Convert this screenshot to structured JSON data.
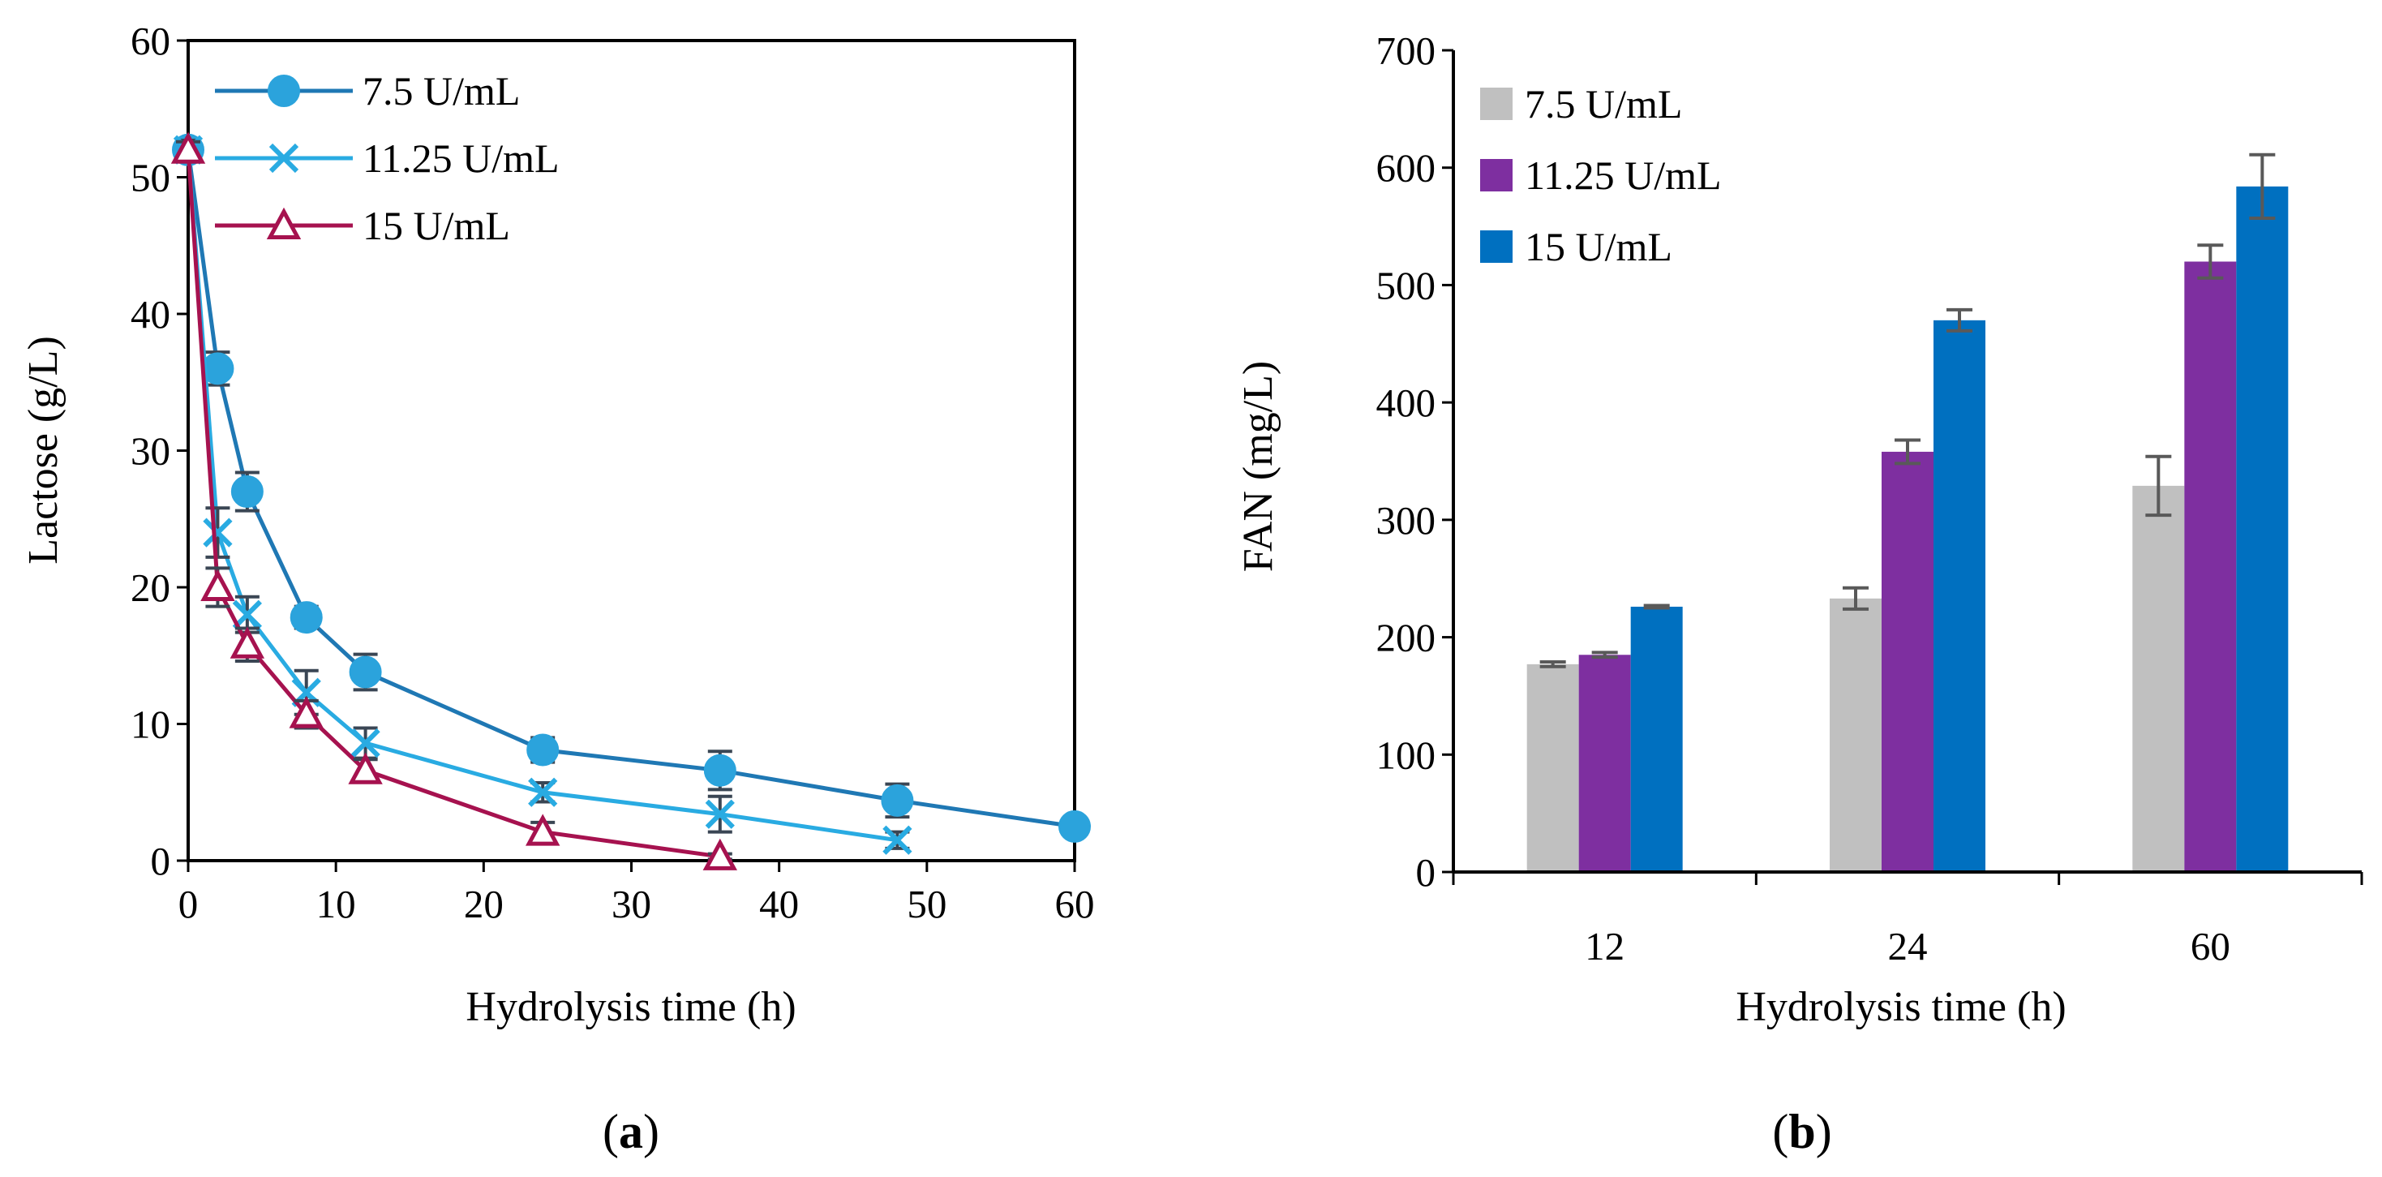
{
  "chart_data": [
    {
      "panel": "a",
      "type": "line",
      "xlabel": "Hydrolysis time (h)",
      "ylabel": "Lactose (g/L)",
      "xlim": [
        0,
        60
      ],
      "ylim": [
        0,
        60
      ],
      "xticks": [
        "0",
        "10",
        "20",
        "30",
        "40",
        "50",
        "60"
      ],
      "yticks": [
        "0",
        "10",
        "20",
        "30",
        "40",
        "50",
        "60"
      ],
      "grid": false,
      "legend_position": "top-left",
      "series": [
        {
          "name": "7.5 U/mL",
          "color": "#1f78b4",
          "marker_color": "#2ba3dc",
          "marker": "circle",
          "x": [
            0,
            2,
            4,
            8,
            12,
            24,
            36,
            48,
            60
          ],
          "y": [
            52,
            36,
            27,
            17.8,
            13.8,
            8.1,
            6.6,
            4.4,
            2.5
          ],
          "err": [
            0.8,
            1.2,
            1.4,
            0.8,
            1.3,
            0.9,
            1.4,
            1.2,
            0.3
          ]
        },
        {
          "name": "11.25 U/mL",
          "color": "#29abe2",
          "marker": "cross",
          "x": [
            0,
            2,
            4,
            8,
            12,
            24,
            36,
            48
          ],
          "y": [
            52,
            24,
            18,
            12.3,
            8.6,
            5.0,
            3.4,
            1.5
          ],
          "err": [
            0.7,
            1.8,
            1.3,
            1.6,
            1.1,
            0.7,
            1.3,
            0.6
          ]
        },
        {
          "name": "15 U/mL",
          "color": "#a6124f",
          "marker": "triangle",
          "x": [
            0,
            2,
            4,
            8,
            12,
            24,
            36
          ],
          "y": [
            52,
            20,
            15.8,
            10.7,
            6.6,
            2.1,
            0.3
          ],
          "err": [
            0.6,
            1.4,
            1.2,
            1.0,
            0.8,
            0.7,
            0.2
          ]
        }
      ]
    },
    {
      "panel": "b",
      "type": "bar",
      "xlabel": "Hydrolysis time (h)",
      "ylabel": "FAN (mg/L)",
      "categories": [
        "12",
        "24",
        "60"
      ],
      "ylim": [
        0,
        700
      ],
      "yticks": [
        "0",
        "100",
        "200",
        "300",
        "400",
        "500",
        "600",
        "700"
      ],
      "grid": false,
      "legend_position": "top-left",
      "series": [
        {
          "name": "7.5 U/mL",
          "color": "#c0c0c0",
          "values": [
            177,
            233,
            329
          ],
          "err": [
            2,
            9,
            25
          ]
        },
        {
          "name": "11.25 U/mL",
          "color": "#7e2fa0",
          "values": [
            185,
            358,
            520
          ],
          "err": [
            2,
            10,
            14
          ]
        },
        {
          "name": "15 U/mL",
          "color": "#0070c0",
          "values": [
            226,
            470,
            584
          ],
          "err": [
            1,
            9,
            27
          ]
        }
      ]
    }
  ],
  "panel_labels": {
    "a": "a",
    "b": "b"
  }
}
